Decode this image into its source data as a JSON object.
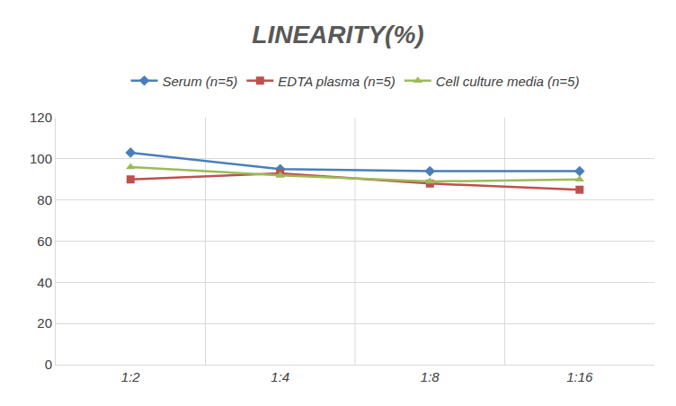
{
  "chart_data": {
    "type": "line",
    "title": "LINEARITY(%)",
    "categories": [
      "1:2",
      "1:4",
      "1:8",
      "1:16"
    ],
    "series": [
      {
        "name": "Serum (n=5)",
        "color": "#4a7ebb",
        "marker": "diamond",
        "values": [
          103,
          95,
          94,
          94
        ]
      },
      {
        "name": "EDTA plasma (n=5)",
        "color": "#c0504d",
        "marker": "square",
        "values": [
          90,
          93,
          88,
          85
        ]
      },
      {
        "name": "Cell culture media (n=5)",
        "color": "#9bbb59",
        "marker": "triangle",
        "values": [
          96,
          92,
          89,
          90
        ]
      }
    ],
    "ylim": [
      0,
      120
    ],
    "yticks": [
      0,
      20,
      40,
      60,
      80,
      100,
      120
    ],
    "grid": true,
    "legend": "top"
  }
}
